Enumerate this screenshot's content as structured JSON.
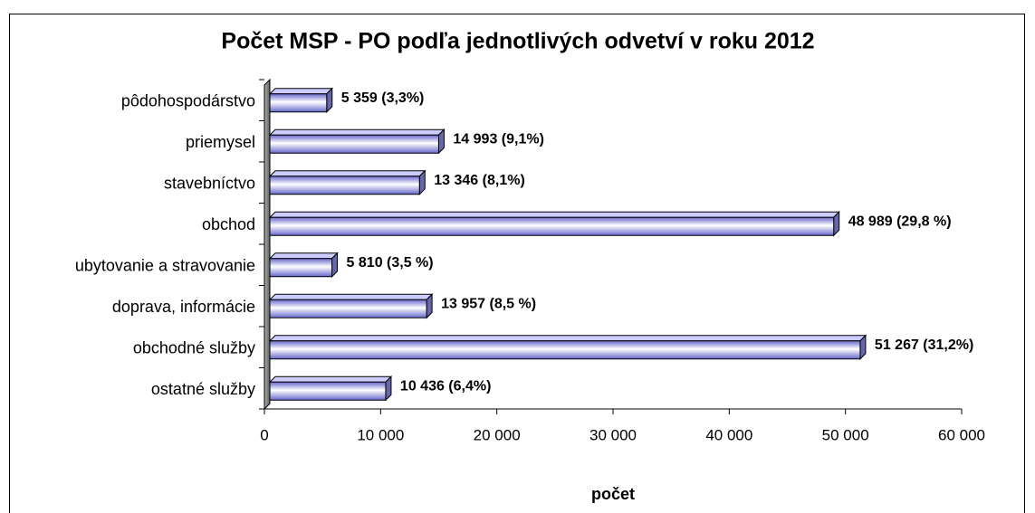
{
  "chart_data": {
    "type": "bar",
    "orientation": "horizontal",
    "title": "Počet MSP - PO podľa jednotlivých odvetví v roku 2012",
    "x_label": "počet",
    "categories": [
      "pôdohospodárstvo",
      "priemysel",
      "stavebníctvo",
      "obchod",
      "ubytovanie a stravovanie",
      "doprava, informácie",
      "obchodné služby",
      "ostatné služby"
    ],
    "values": [
      5359,
      14993,
      13346,
      48989,
      5810,
      13957,
      51267,
      10436
    ],
    "value_labels": [
      "5 359 (3,3%)",
      "14 993 (9,1%)",
      "13 346 (8,1%)",
      "48 989 (29,8 %)",
      "5 810 (3,5 %)",
      "13 957 (8,5 %)",
      "51 267 (31,2%)",
      "10 436 (6,4%)"
    ],
    "color": "#9999ff",
    "xlim": [
      0,
      60000
    ],
    "xticks": [
      0,
      {
        "value": 10000,
        "label": "10 000"
      },
      {
        "value": 20000,
        "label": "20 000"
      },
      {
        "value": 30000,
        "label": "30 000"
      },
      {
        "value": 40000,
        "label": "40 000"
      },
      {
        "value": 50000,
        "label": "50 000"
      },
      {
        "value": 60000,
        "label": "60 000"
      }
    ],
    "grid": false
  }
}
